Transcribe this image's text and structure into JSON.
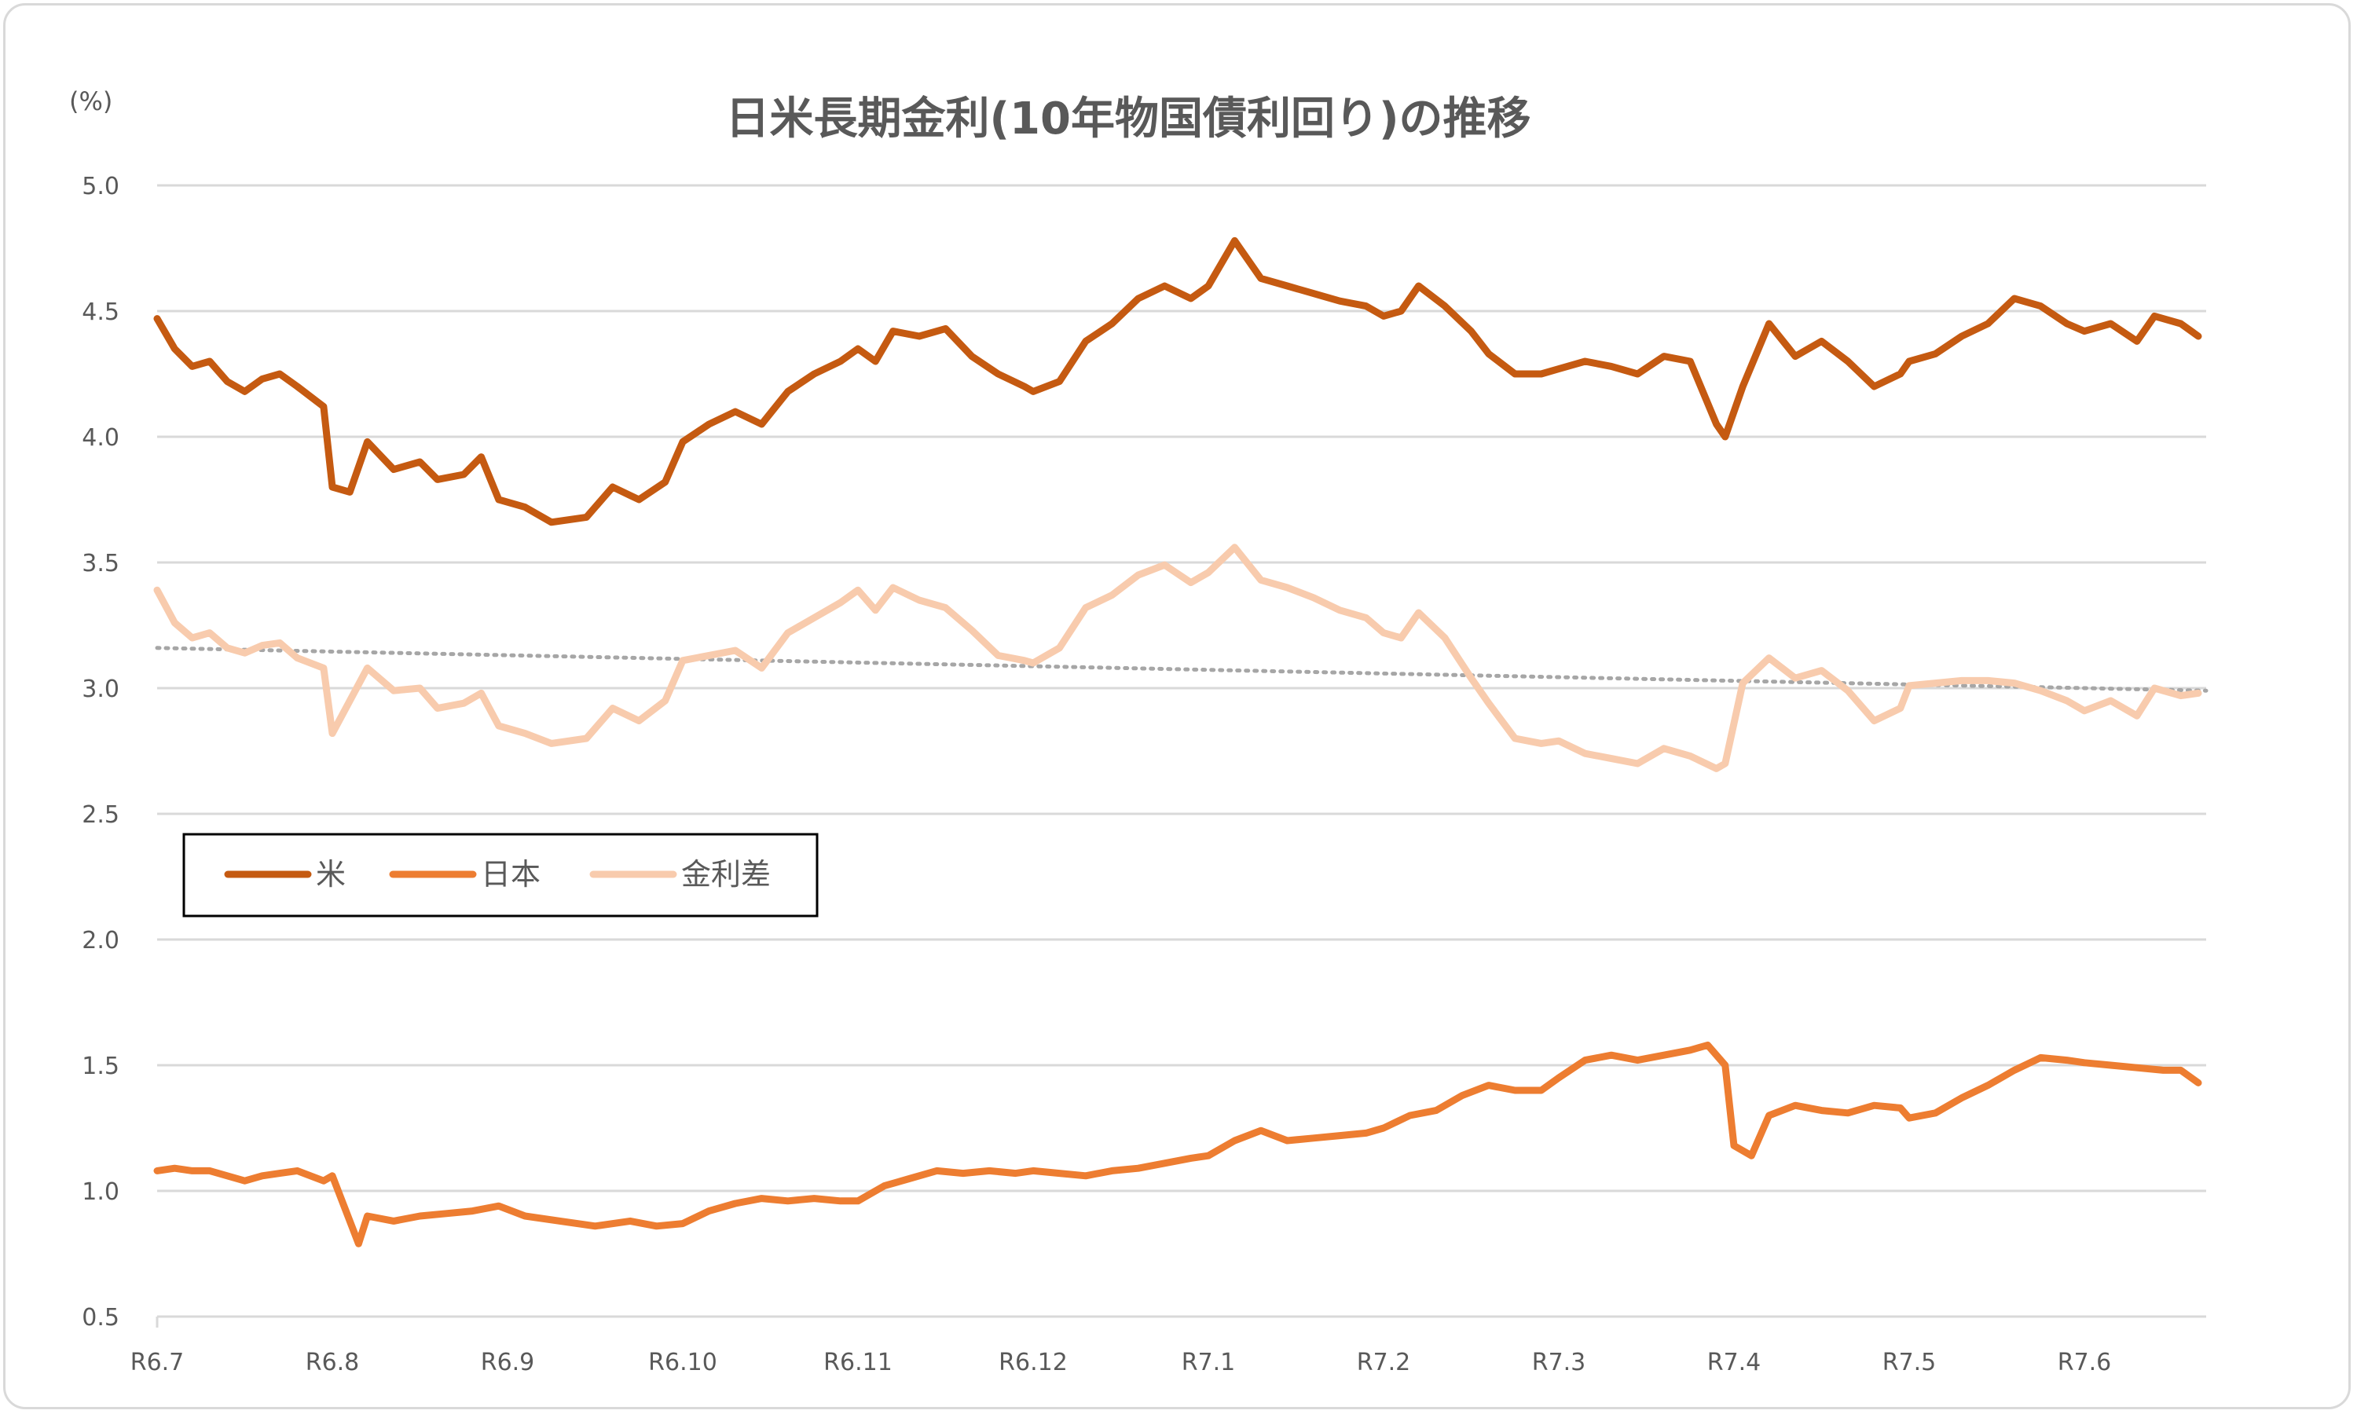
{
  "chart_data": {
    "type": "line",
    "title": "日米長期金利(10年物国債利回り)の推移",
    "unit_label": "(%)",
    "ylim": [
      0.5,
      5.0
    ],
    "y_ticks": [
      "5.0",
      "4.5",
      "4.0",
      "3.5",
      "3.0",
      "2.5",
      "2.0",
      "1.5",
      "1.0",
      "0.5"
    ],
    "x_ticks": [
      "R6.7",
      "R6.8",
      "R6.9",
      "R6.10",
      "R6.11",
      "R6.12",
      "R7.1",
      "R7.2",
      "R7.3",
      "R7.4",
      "R7.5",
      "R7.6"
    ],
    "grid": "horizontal",
    "legend_position": "middle-left",
    "trendline": {
      "series": "金利差",
      "style": "dotted",
      "start": 3.16,
      "end": 2.99
    },
    "series": [
      {
        "name": "米",
        "color": "#C55A11",
        "values": [
          [
            0.0,
            4.47
          ],
          [
            0.1,
            4.35
          ],
          [
            0.2,
            4.28
          ],
          [
            0.3,
            4.3
          ],
          [
            0.4,
            4.22
          ],
          [
            0.5,
            4.18
          ],
          [
            0.6,
            4.23
          ],
          [
            0.7,
            4.25
          ],
          [
            0.8,
            4.2
          ],
          [
            0.95,
            4.12
          ],
          [
            1.0,
            3.8
          ],
          [
            1.1,
            3.78
          ],
          [
            1.2,
            3.98
          ],
          [
            1.35,
            3.87
          ],
          [
            1.5,
            3.9
          ],
          [
            1.6,
            3.83
          ],
          [
            1.75,
            3.85
          ],
          [
            1.85,
            3.92
          ],
          [
            1.95,
            3.75
          ],
          [
            2.1,
            3.72
          ],
          [
            2.25,
            3.66
          ],
          [
            2.45,
            3.68
          ],
          [
            2.6,
            3.8
          ],
          [
            2.75,
            3.75
          ],
          [
            2.9,
            3.82
          ],
          [
            3.0,
            3.98
          ],
          [
            3.15,
            4.05
          ],
          [
            3.3,
            4.1
          ],
          [
            3.45,
            4.05
          ],
          [
            3.6,
            4.18
          ],
          [
            3.75,
            4.25
          ],
          [
            3.9,
            4.3
          ],
          [
            4.0,
            4.35
          ],
          [
            4.1,
            4.3
          ],
          [
            4.2,
            4.42
          ],
          [
            4.35,
            4.4
          ],
          [
            4.5,
            4.43
          ],
          [
            4.65,
            4.32
          ],
          [
            4.8,
            4.25
          ],
          [
            4.95,
            4.2
          ],
          [
            5.0,
            4.18
          ],
          [
            5.15,
            4.22
          ],
          [
            5.3,
            4.38
          ],
          [
            5.45,
            4.45
          ],
          [
            5.6,
            4.55
          ],
          [
            5.75,
            4.6
          ],
          [
            5.9,
            4.55
          ],
          [
            6.0,
            4.6
          ],
          [
            6.15,
            4.78
          ],
          [
            6.3,
            4.63
          ],
          [
            6.45,
            4.6
          ],
          [
            6.6,
            4.57
          ],
          [
            6.75,
            4.54
          ],
          [
            6.9,
            4.52
          ],
          [
            7.0,
            4.48
          ],
          [
            7.1,
            4.5
          ],
          [
            7.2,
            4.6
          ],
          [
            7.35,
            4.52
          ],
          [
            7.5,
            4.42
          ],
          [
            7.6,
            4.33
          ],
          [
            7.75,
            4.25
          ],
          [
            7.9,
            4.25
          ],
          [
            8.0,
            4.27
          ],
          [
            8.15,
            4.3
          ],
          [
            8.3,
            4.28
          ],
          [
            8.45,
            4.25
          ],
          [
            8.6,
            4.32
          ],
          [
            8.75,
            4.3
          ],
          [
            8.9,
            4.05
          ],
          [
            8.95,
            4.0
          ],
          [
            9.05,
            4.2
          ],
          [
            9.2,
            4.45
          ],
          [
            9.35,
            4.32
          ],
          [
            9.5,
            4.38
          ],
          [
            9.65,
            4.3
          ],
          [
            9.8,
            4.2
          ],
          [
            9.95,
            4.25
          ],
          [
            10.0,
            4.3
          ],
          [
            10.15,
            4.33
          ],
          [
            10.3,
            4.4
          ],
          [
            10.45,
            4.45
          ],
          [
            10.6,
            4.55
          ],
          [
            10.75,
            4.52
          ],
          [
            10.9,
            4.45
          ],
          [
            11.0,
            4.42
          ],
          [
            11.15,
            4.45
          ],
          [
            11.3,
            4.38
          ],
          [
            11.4,
            4.48
          ],
          [
            11.55,
            4.45
          ],
          [
            11.65,
            4.4
          ]
        ]
      },
      {
        "name": "日本",
        "color": "#ED7D31",
        "values": [
          [
            0.0,
            1.08
          ],
          [
            0.1,
            1.09
          ],
          [
            0.2,
            1.08
          ],
          [
            0.3,
            1.08
          ],
          [
            0.4,
            1.06
          ],
          [
            0.5,
            1.04
          ],
          [
            0.6,
            1.06
          ],
          [
            0.7,
            1.07
          ],
          [
            0.8,
            1.08
          ],
          [
            0.95,
            1.04
          ],
          [
            1.0,
            1.06
          ],
          [
            1.15,
            0.79
          ],
          [
            1.2,
            0.9
          ],
          [
            1.35,
            0.88
          ],
          [
            1.5,
            0.9
          ],
          [
            1.65,
            0.91
          ],
          [
            1.8,
            0.92
          ],
          [
            1.95,
            0.94
          ],
          [
            2.1,
            0.9
          ],
          [
            2.3,
            0.88
          ],
          [
            2.5,
            0.86
          ],
          [
            2.7,
            0.88
          ],
          [
            2.85,
            0.86
          ],
          [
            3.0,
            0.87
          ],
          [
            3.15,
            0.92
          ],
          [
            3.3,
            0.95
          ],
          [
            3.45,
            0.97
          ],
          [
            3.6,
            0.96
          ],
          [
            3.75,
            0.97
          ],
          [
            3.9,
            0.96
          ],
          [
            4.0,
            0.96
          ],
          [
            4.15,
            1.02
          ],
          [
            4.3,
            1.05
          ],
          [
            4.45,
            1.08
          ],
          [
            4.6,
            1.07
          ],
          [
            4.75,
            1.08
          ],
          [
            4.9,
            1.07
          ],
          [
            5.0,
            1.08
          ],
          [
            5.15,
            1.07
          ],
          [
            5.3,
            1.06
          ],
          [
            5.45,
            1.08
          ],
          [
            5.6,
            1.09
          ],
          [
            5.75,
            1.11
          ],
          [
            5.9,
            1.13
          ],
          [
            6.0,
            1.14
          ],
          [
            6.15,
            1.2
          ],
          [
            6.3,
            1.24
          ],
          [
            6.45,
            1.2
          ],
          [
            6.6,
            1.21
          ],
          [
            6.75,
            1.22
          ],
          [
            6.9,
            1.23
          ],
          [
            7.0,
            1.25
          ],
          [
            7.15,
            1.3
          ],
          [
            7.3,
            1.32
          ],
          [
            7.45,
            1.38
          ],
          [
            7.6,
            1.42
          ],
          [
            7.75,
            1.4
          ],
          [
            7.9,
            1.4
          ],
          [
            8.0,
            1.45
          ],
          [
            8.15,
            1.52
          ],
          [
            8.3,
            1.54
          ],
          [
            8.45,
            1.52
          ],
          [
            8.6,
            1.54
          ],
          [
            8.75,
            1.56
          ],
          [
            8.85,
            1.58
          ],
          [
            8.95,
            1.5
          ],
          [
            9.0,
            1.18
          ],
          [
            9.1,
            1.14
          ],
          [
            9.2,
            1.3
          ],
          [
            9.35,
            1.34
          ],
          [
            9.5,
            1.32
          ],
          [
            9.65,
            1.31
          ],
          [
            9.8,
            1.34
          ],
          [
            9.95,
            1.33
          ],
          [
            10.0,
            1.29
          ],
          [
            10.15,
            1.31
          ],
          [
            10.3,
            1.37
          ],
          [
            10.45,
            1.42
          ],
          [
            10.6,
            1.48
          ],
          [
            10.75,
            1.53
          ],
          [
            10.9,
            1.52
          ],
          [
            11.0,
            1.51
          ],
          [
            11.15,
            1.5
          ],
          [
            11.3,
            1.49
          ],
          [
            11.45,
            1.48
          ],
          [
            11.55,
            1.48
          ],
          [
            11.65,
            1.43
          ]
        ]
      },
      {
        "name": "金利差",
        "color": "#F8CBAD",
        "values": [
          [
            0.0,
            3.39
          ],
          [
            0.1,
            3.26
          ],
          [
            0.2,
            3.2
          ],
          [
            0.3,
            3.22
          ],
          [
            0.4,
            3.16
          ],
          [
            0.5,
            3.14
          ],
          [
            0.6,
            3.17
          ],
          [
            0.7,
            3.18
          ],
          [
            0.8,
            3.12
          ],
          [
            0.95,
            3.08
          ],
          [
            1.0,
            2.82
          ],
          [
            1.1,
            2.95
          ],
          [
            1.2,
            3.08
          ],
          [
            1.35,
            2.99
          ],
          [
            1.5,
            3.0
          ],
          [
            1.6,
            2.92
          ],
          [
            1.75,
            2.94
          ],
          [
            1.85,
            2.98
          ],
          [
            1.95,
            2.85
          ],
          [
            2.1,
            2.82
          ],
          [
            2.25,
            2.78
          ],
          [
            2.45,
            2.8
          ],
          [
            2.6,
            2.92
          ],
          [
            2.75,
            2.87
          ],
          [
            2.9,
            2.95
          ],
          [
            3.0,
            3.11
          ],
          [
            3.15,
            3.13
          ],
          [
            3.3,
            3.15
          ],
          [
            3.45,
            3.08
          ],
          [
            3.6,
            3.22
          ],
          [
            3.75,
            3.28
          ],
          [
            3.9,
            3.34
          ],
          [
            4.0,
            3.39
          ],
          [
            4.1,
            3.31
          ],
          [
            4.2,
            3.4
          ],
          [
            4.35,
            3.35
          ],
          [
            4.5,
            3.32
          ],
          [
            4.65,
            3.23
          ],
          [
            4.8,
            3.13
          ],
          [
            4.95,
            3.11
          ],
          [
            5.0,
            3.1
          ],
          [
            5.15,
            3.16
          ],
          [
            5.3,
            3.32
          ],
          [
            5.45,
            3.37
          ],
          [
            5.6,
            3.45
          ],
          [
            5.75,
            3.49
          ],
          [
            5.9,
            3.42
          ],
          [
            6.0,
            3.46
          ],
          [
            6.15,
            3.56
          ],
          [
            6.3,
            3.43
          ],
          [
            6.45,
            3.4
          ],
          [
            6.6,
            3.36
          ],
          [
            6.75,
            3.31
          ],
          [
            6.9,
            3.28
          ],
          [
            7.0,
            3.22
          ],
          [
            7.1,
            3.2
          ],
          [
            7.2,
            3.3
          ],
          [
            7.35,
            3.2
          ],
          [
            7.5,
            3.04
          ],
          [
            7.6,
            2.94
          ],
          [
            7.75,
            2.8
          ],
          [
            7.9,
            2.78
          ],
          [
            8.0,
            2.79
          ],
          [
            8.15,
            2.74
          ],
          [
            8.3,
            2.72
          ],
          [
            8.45,
            2.7
          ],
          [
            8.6,
            2.76
          ],
          [
            8.75,
            2.73
          ],
          [
            8.9,
            2.68
          ],
          [
            8.95,
            2.7
          ],
          [
            9.05,
            3.02
          ],
          [
            9.2,
            3.12
          ],
          [
            9.35,
            3.04
          ],
          [
            9.5,
            3.07
          ],
          [
            9.65,
            2.99
          ],
          [
            9.8,
            2.87
          ],
          [
            9.95,
            2.92
          ],
          [
            10.0,
            3.01
          ],
          [
            10.15,
            3.02
          ],
          [
            10.3,
            3.03
          ],
          [
            10.45,
            3.03
          ],
          [
            10.6,
            3.02
          ],
          [
            10.75,
            2.99
          ],
          [
            10.9,
            2.95
          ],
          [
            11.0,
            2.91
          ],
          [
            11.15,
            2.95
          ],
          [
            11.3,
            2.89
          ],
          [
            11.4,
            3.0
          ],
          [
            11.55,
            2.97
          ],
          [
            11.65,
            2.98
          ]
        ]
      }
    ]
  }
}
